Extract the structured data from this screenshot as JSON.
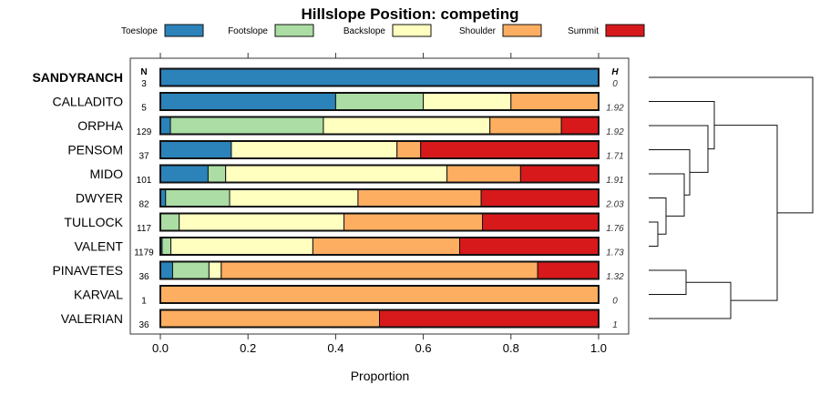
{
  "chart_data": {
    "type": "bar",
    "stacked": true,
    "orientation": "horizontal",
    "title": "Hillslope Position: competing",
    "xlabel": "Proportion",
    "ylabel": "",
    "xlim": [
      0,
      1
    ],
    "x_ticks": [
      "0.0",
      "0.2",
      "0.4",
      "0.6",
      "0.8",
      "1.0"
    ],
    "x_tick_values": [
      0,
      0.2,
      0.4,
      0.6,
      0.8,
      1.0
    ],
    "legend_placement": "top",
    "n_header": "N",
    "h_header": "H",
    "highlight_category": "SANDYRANCH",
    "categories": [
      "SANDYRANCH",
      "CALLADITO",
      "ORPHA",
      "PENSOM",
      "MIDO",
      "DWYER",
      "TULLOCK",
      "VALENT",
      "PINAVETES",
      "KARVAL",
      "VALERIAN"
    ],
    "n": [
      "3",
      "5",
      "129",
      "37",
      "101",
      "82",
      "117",
      "1179",
      "36",
      "1",
      "36"
    ],
    "h": [
      "0",
      "1.92",
      "1.92",
      "1.71",
      "1.91",
      "2.03",
      "1.76",
      "1.73",
      "1.32",
      "0",
      "1"
    ],
    "series": [
      {
        "name": "Toeslope",
        "color": "#2B83BA",
        "values": [
          1.0,
          0.4,
          0.023,
          0.162,
          0.109,
          0.012,
          0.0,
          0.004,
          0.028,
          0.0,
          0.0
        ]
      },
      {
        "name": "Footslope",
        "color": "#ABDDA4",
        "values": [
          0.0,
          0.2,
          0.349,
          0.0,
          0.04,
          0.146,
          0.043,
          0.02,
          0.083,
          0.0,
          0.0
        ]
      },
      {
        "name": "Backslope",
        "color": "#FFFFBF",
        "values": [
          0.0,
          0.2,
          0.38,
          0.378,
          0.505,
          0.293,
          0.376,
          0.324,
          0.028,
          0.0,
          0.0
        ]
      },
      {
        "name": "Shoulder",
        "color": "#FDAE61",
        "values": [
          0.0,
          0.2,
          0.163,
          0.054,
          0.168,
          0.281,
          0.316,
          0.335,
          0.722,
          1.0,
          0.5
        ]
      },
      {
        "name": "Summit",
        "color": "#D7191C",
        "values": [
          0.0,
          0.0,
          0.085,
          0.405,
          0.178,
          0.268,
          0.265,
          0.317,
          0.139,
          0.0,
          0.5
        ]
      }
    ],
    "dendrogram": {
      "merges": [
        [
          "TULLOCK",
          "VALENT"
        ],
        [
          "DWYER",
          "(TULLOCK,VALENT)"
        ],
        [
          "MIDO",
          "(DWYER,...)"
        ],
        [
          "PENSOM",
          "(MIDO,...)"
        ],
        [
          "ORPHA",
          "(PENSOM,...)"
        ],
        [
          "CALLADITO",
          "(ORPHA,...)"
        ],
        [
          "PINAVETES",
          "KARVAL"
        ],
        [
          "(PINAVETES,KARVAL)",
          "VALERIAN"
        ],
        [
          "(CALLADITO,...)",
          "(PINAVETES,KARVAL,VALERIAN)"
        ],
        [
          "SANDYRANCH",
          "(all others)"
        ]
      ]
    }
  }
}
